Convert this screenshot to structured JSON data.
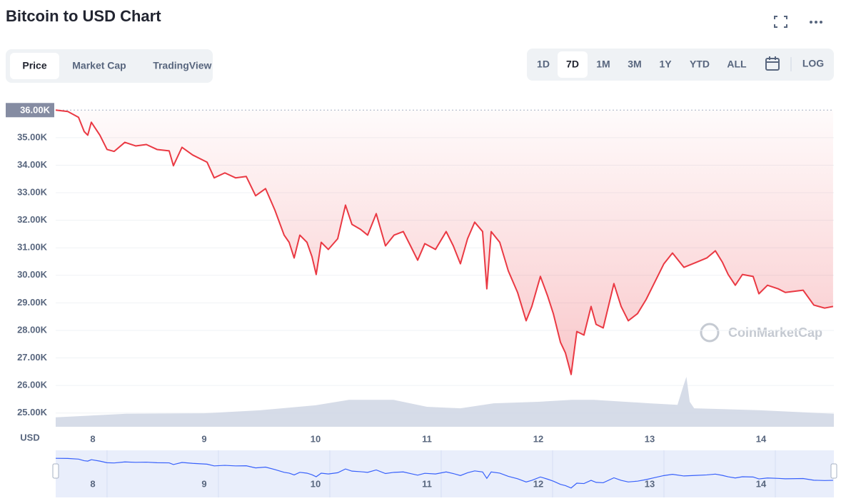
{
  "chart_data": {
    "type": "line",
    "title": "Bitcoin to USD Chart",
    "y_unit": "USD",
    "x": [
      7.667,
      7.776,
      7.872,
      7.923,
      7.955,
      7.987,
      8.064,
      8.128,
      8.192,
      8.288,
      8.385,
      8.481,
      8.577,
      8.686,
      8.724,
      8.801,
      8.897,
      9.026,
      9.09,
      9.186,
      9.282,
      9.378,
      9.462,
      9.551,
      9.635,
      9.718,
      9.763,
      9.808,
      9.859,
      9.923,
      9.968,
      10.006,
      10.051,
      10.115,
      10.199,
      10.269,
      10.327,
      10.404,
      10.468,
      10.545,
      10.628,
      10.705,
      10.788,
      10.853,
      10.917,
      10.981,
      11.077,
      11.173,
      11.237,
      11.301,
      11.365,
      11.429,
      11.5,
      11.538,
      11.577,
      11.654,
      11.731,
      11.814,
      11.891,
      11.942,
      12.019,
      12.083,
      12.135,
      12.199,
      12.244,
      12.295,
      12.346,
      12.41,
      12.474,
      12.519,
      12.583,
      12.679,
      12.744,
      12.808,
      12.891,
      12.968,
      13.032,
      13.128,
      13.205,
      13.308,
      13.417,
      13.513,
      13.59,
      13.654,
      13.705,
      13.769,
      13.833,
      13.929,
      13.981,
      14.058,
      14.154,
      14.218,
      14.378,
      14.474,
      14.571,
      14.647
    ],
    "values": [
      36000,
      35950,
      35740,
      35220,
      35090,
      35560,
      35090,
      34570,
      34500,
      34830,
      34700,
      34750,
      34570,
      34520,
      33980,
      34650,
      34370,
      34110,
      33540,
      33720,
      33540,
      33590,
      32890,
      33150,
      32370,
      31460,
      31200,
      30630,
      31460,
      31200,
      30680,
      30030,
      31200,
      30940,
      31330,
      32550,
      31850,
      31670,
      31460,
      32240,
      31070,
      31460,
      31590,
      31070,
      30550,
      31150,
      30940,
      31590,
      31070,
      30420,
      31330,
      31930,
      31590,
      29510,
      31590,
      31200,
      30160,
      29380,
      28350,
      28870,
      29960,
      29260,
      28610,
      27570,
      27180,
      26400,
      27960,
      27830,
      28870,
      28220,
      28090,
      29700,
      28870,
      28350,
      28610,
      29120,
      29640,
      30420,
      30810,
      30290,
      30470,
      30630,
      30890,
      30470,
      30030,
      29640,
      30030,
      29960,
      29330,
      29640,
      29510,
      29380,
      29460,
      28920,
      28810,
      28870
    ],
    "color": "#ea3943",
    "reference_line": {
      "value": 36000,
      "label": "36.00K"
    },
    "xlim": [
      7.667,
      14.654
    ],
    "xticks": [
      8,
      9,
      10,
      11,
      12,
      13,
      14
    ],
    "ylim": [
      24500,
      36500
    ],
    "yticks": [
      {
        "value": 25000,
        "label": "25.00K"
      },
      {
        "value": 26000,
        "label": "26.00K"
      },
      {
        "value": 27000,
        "label": "27.00K"
      },
      {
        "value": 28000,
        "label": "28.00K"
      },
      {
        "value": 29000,
        "label": "29.00K"
      },
      {
        "value": 30000,
        "label": "30.00K"
      },
      {
        "value": 31000,
        "label": "31.00K"
      },
      {
        "value": 32000,
        "label": "32.00K"
      },
      {
        "value": 33000,
        "label": "33.00K"
      },
      {
        "value": 34000,
        "label": "34.00K"
      },
      {
        "value": 35000,
        "label": "35.00K"
      }
    ],
    "grid": true,
    "volume": {
      "x": [
        7.667,
        8.3,
        9.0,
        9.5,
        10.0,
        10.3,
        10.7,
        11.0,
        11.3,
        11.6,
        12.0,
        12.3,
        12.5,
        13.0,
        13.25,
        13.3,
        13.33,
        13.36,
        13.4,
        14.0,
        14.654
      ],
      "values": [
        19,
        26,
        27,
        33,
        43,
        54,
        54,
        40,
        37,
        47,
        50,
        54,
        54,
        47,
        44,
        80,
        100,
        50,
        37,
        33,
        26
      ],
      "ylim": [
        0,
        100
      ],
      "color": "#cfd6e4"
    },
    "watermark": "CoinMarketCap"
  },
  "controls": {
    "tabs": [
      "Price",
      "Market Cap",
      "TradingView"
    ],
    "active_tab": "Price",
    "ranges": [
      "1D",
      "7D",
      "1M",
      "3M",
      "1Y",
      "YTD",
      "ALL"
    ],
    "active_range": "7D",
    "log": "LOG"
  }
}
